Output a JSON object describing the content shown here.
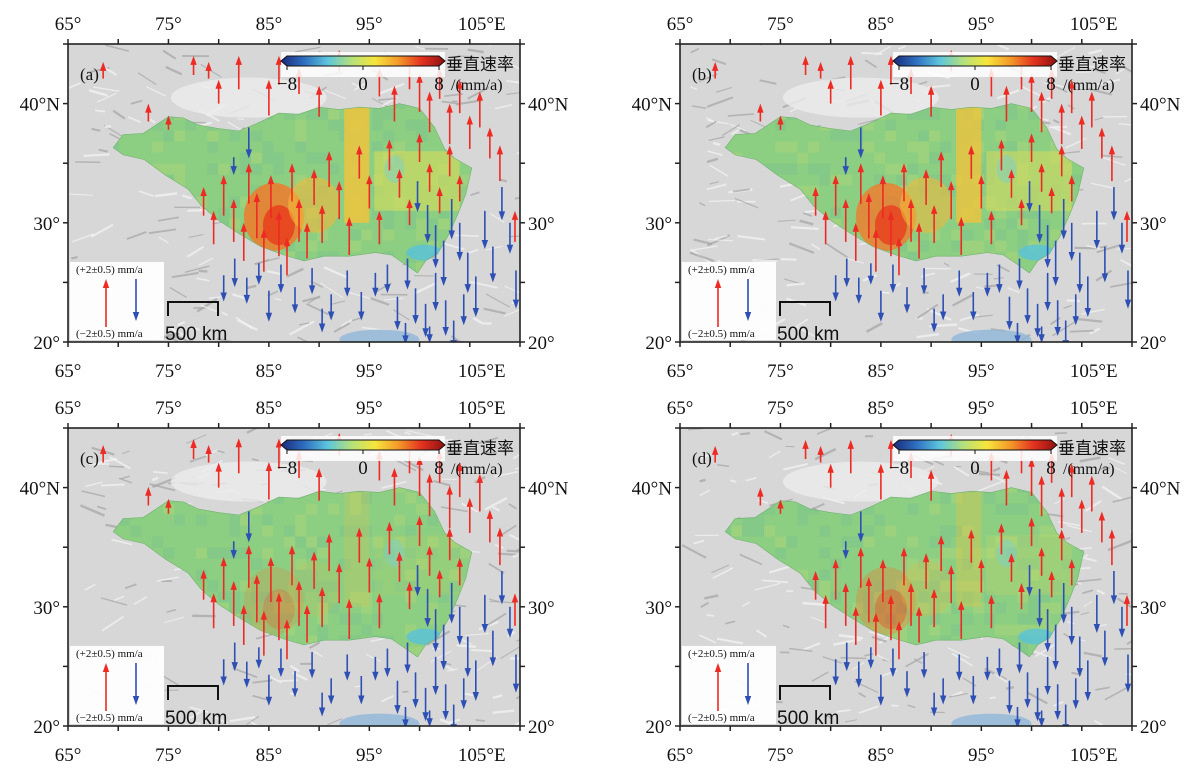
{
  "axes": {
    "top_ticks": [
      "65°",
      "75°",
      "85°",
      "95°",
      "105°E"
    ],
    "bottom_ticks": [
      "65°",
      "75°",
      "85°",
      "95°",
      "105°E"
    ],
    "left_ticks": [
      "40°N",
      "30°",
      "20°"
    ],
    "right_ticks": [
      "40°N",
      "30°",
      "20°"
    ],
    "lon_range": [
      65,
      110
    ],
    "lat_range": [
      20,
      45
    ]
  },
  "colorbar": {
    "title": "垂直速率",
    "unit": "/(mm/a)",
    "tick_labels": [
      "−8",
      "0",
      "8"
    ],
    "range": [
      -8,
      8
    ],
    "colors": [
      "#1b2a7a",
      "#2f6fc0",
      "#5cc6dd",
      "#b4e07c",
      "#f6e63c",
      "#f49a2a",
      "#e3321f",
      "#8e1010"
    ]
  },
  "legend": {
    "up_label": "(+2±0.5) mm/a",
    "down_label": "(−2±0.5) mm/a",
    "up_color": "#ee2a24",
    "down_color": "#2e4fb4"
  },
  "scale_bar": {
    "label": "500 km"
  },
  "colors": {
    "plateau_base": "#8cce82",
    "terrain": "#d7d7d7",
    "hot": "#e8431f",
    "warm": "#f4c43a",
    "cool": "#55c2e0"
  },
  "panels": [
    {
      "label": "(a)",
      "anomaly": 1.0,
      "red_arrow_factor": 1.0
    },
    {
      "label": "(b)",
      "anomaly": 0.95,
      "red_arrow_factor": 1.0
    },
    {
      "label": "(c)",
      "anomaly": 0.25,
      "red_arrow_factor": 1.05
    },
    {
      "label": "(d)",
      "anomaly": 0.4,
      "red_arrow_factor": 1.0
    }
  ]
}
